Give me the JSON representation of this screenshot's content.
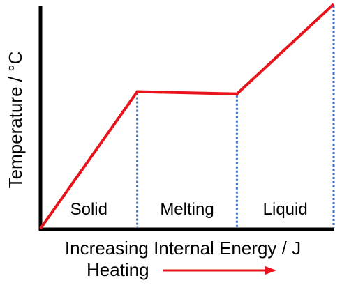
{
  "chart_data": {
    "type": "line",
    "title": "",
    "xlabel": "Increasing Internal Energy / J",
    "ylabel": "Temperature / °C",
    "x_ticks": "none",
    "y_ticks": "none",
    "grid": false,
    "series": [
      {
        "color": "#e8141b",
        "x": [
          0,
          33,
          67,
          100
        ],
        "y": [
          0,
          61,
          60,
          100
        ]
      }
    ],
    "phase_boundaries": {
      "x": [
        33,
        67,
        100
      ],
      "style": "dotted",
      "color": "#4472c4"
    },
    "regions": [
      {
        "label": "Solid",
        "x_start": 0,
        "x_end": 33
      },
      {
        "label": "Melting",
        "x_start": 33,
        "x_end": 67
      },
      {
        "label": "Liquid",
        "x_start": 67,
        "x_end": 100
      }
    ],
    "xlim": [
      0,
      100
    ],
    "ylim": [
      0,
      100
    ]
  },
  "annotation": {
    "label": "Heating",
    "arrow": "right",
    "arrow_color": "#e8141b"
  }
}
